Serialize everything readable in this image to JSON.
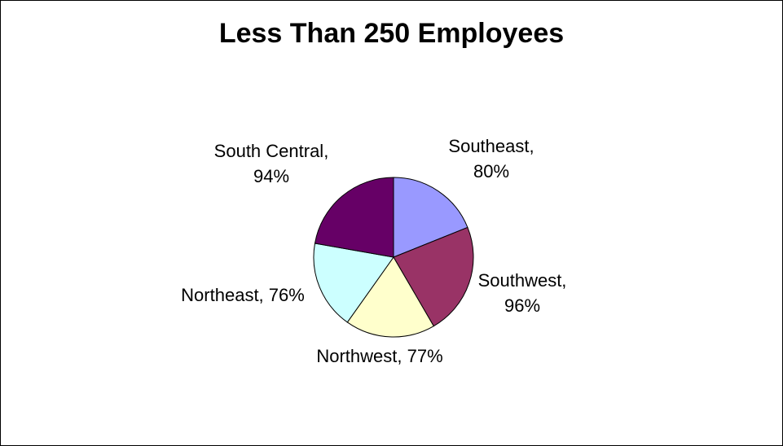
{
  "chart_data": {
    "type": "pie",
    "title": "Less Than 250 Employees",
    "categories": [
      "Southeast",
      "Southwest",
      "Northwest",
      "Northeast",
      "South Central"
    ],
    "values": [
      80,
      96,
      77,
      76,
      94
    ],
    "labels": [
      [
        "Southeast,",
        "80%"
      ],
      [
        "Southwest,",
        "96%"
      ],
      [
        "Northwest, 77%"
      ],
      [
        "Northeast, 76%"
      ],
      [
        "South Central,",
        "94%"
      ]
    ],
    "colors": [
      "#9999ff",
      "#993366",
      "#ffffcc",
      "#ccffff",
      "#660066"
    ],
    "start_angle_deg": 0,
    "direction": "clockwise",
    "legend": "none"
  }
}
